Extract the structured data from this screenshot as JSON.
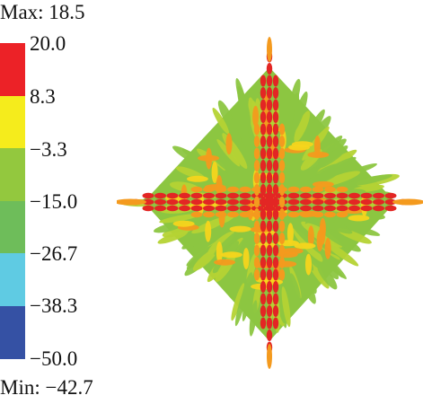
{
  "legend": {
    "max_label": "Max: 18.5",
    "min_label": "Min: −42.7",
    "ticks": [
      "20.0",
      "8.3",
      "−3.3",
      "−15.0",
      "−26.7",
      "−38.3",
      "−50.0"
    ],
    "segment_colors": [
      "#ec2227",
      "#f5ec1c",
      "#93c83e",
      "#6ebd5a",
      "#5fcbe3",
      "#3551a4"
    ]
  },
  "pattern": {
    "core_color": "#e32624",
    "mid_color": "#f49a1e",
    "outer_color": "#8cc641"
  }
}
